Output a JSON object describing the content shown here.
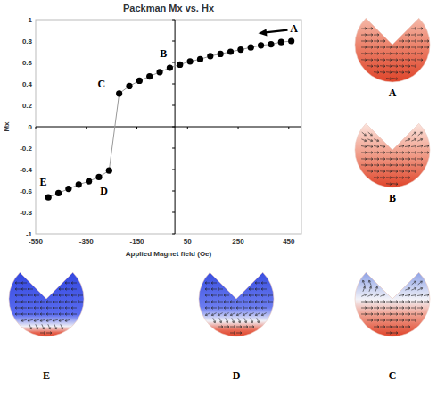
{
  "chart_data": {
    "type": "line",
    "title": "Packman Mx vs. Hx",
    "x_label": "Applied Magnet field (Oe)",
    "y_label": "Mx",
    "x": [
      460,
      420,
      380,
      340,
      300,
      260,
      220,
      180,
      140,
      100,
      60,
      20,
      -20,
      -60,
      -100,
      -140,
      -180,
      -220,
      -260,
      -300,
      -340,
      -380,
      -420,
      -460,
      -500
    ],
    "series": [
      {
        "color": "#000000",
        "marker": "circle",
        "line_style": "solid",
        "values": [
          0.8,
          0.79,
          0.77,
          0.76,
          0.74,
          0.72,
          0.7,
          0.68,
          0.66,
          0.63,
          0.61,
          0.58,
          0.55,
          0.51,
          0.47,
          0.43,
          0.38,
          0.31,
          -0.41,
          -0.47,
          -0.51,
          -0.54,
          -0.58,
          -0.62,
          -0.66
        ]
      }
    ],
    "xlim": [
      -550,
      500
    ],
    "xticks": [
      -550,
      -350,
      -150,
      50,
      250,
      450
    ],
    "ylim": [
      -1,
      1
    ],
    "yticks": [
      -1,
      -0.8,
      -0.6,
      -0.4,
      -0.2,
      0,
      0.2,
      0.4,
      0.6,
      0.8,
      1
    ],
    "grid": false,
    "annotations": [
      {
        "text": "A",
        "x": 470,
        "y": 0.92
      },
      {
        "text": "B",
        "x": -45,
        "y": 0.68
      },
      {
        "text": "C",
        "x": -290,
        "y": 0.4
      },
      {
        "text": "D",
        "x": -280,
        "y": -0.6
      },
      {
        "text": "E",
        "x": -520,
        "y": -0.52
      }
    ]
  },
  "panels": [
    {
      "label": "A"
    },
    {
      "label": "B"
    },
    {
      "label": "C"
    },
    {
      "label": "D"
    },
    {
      "label": "E"
    }
  ]
}
